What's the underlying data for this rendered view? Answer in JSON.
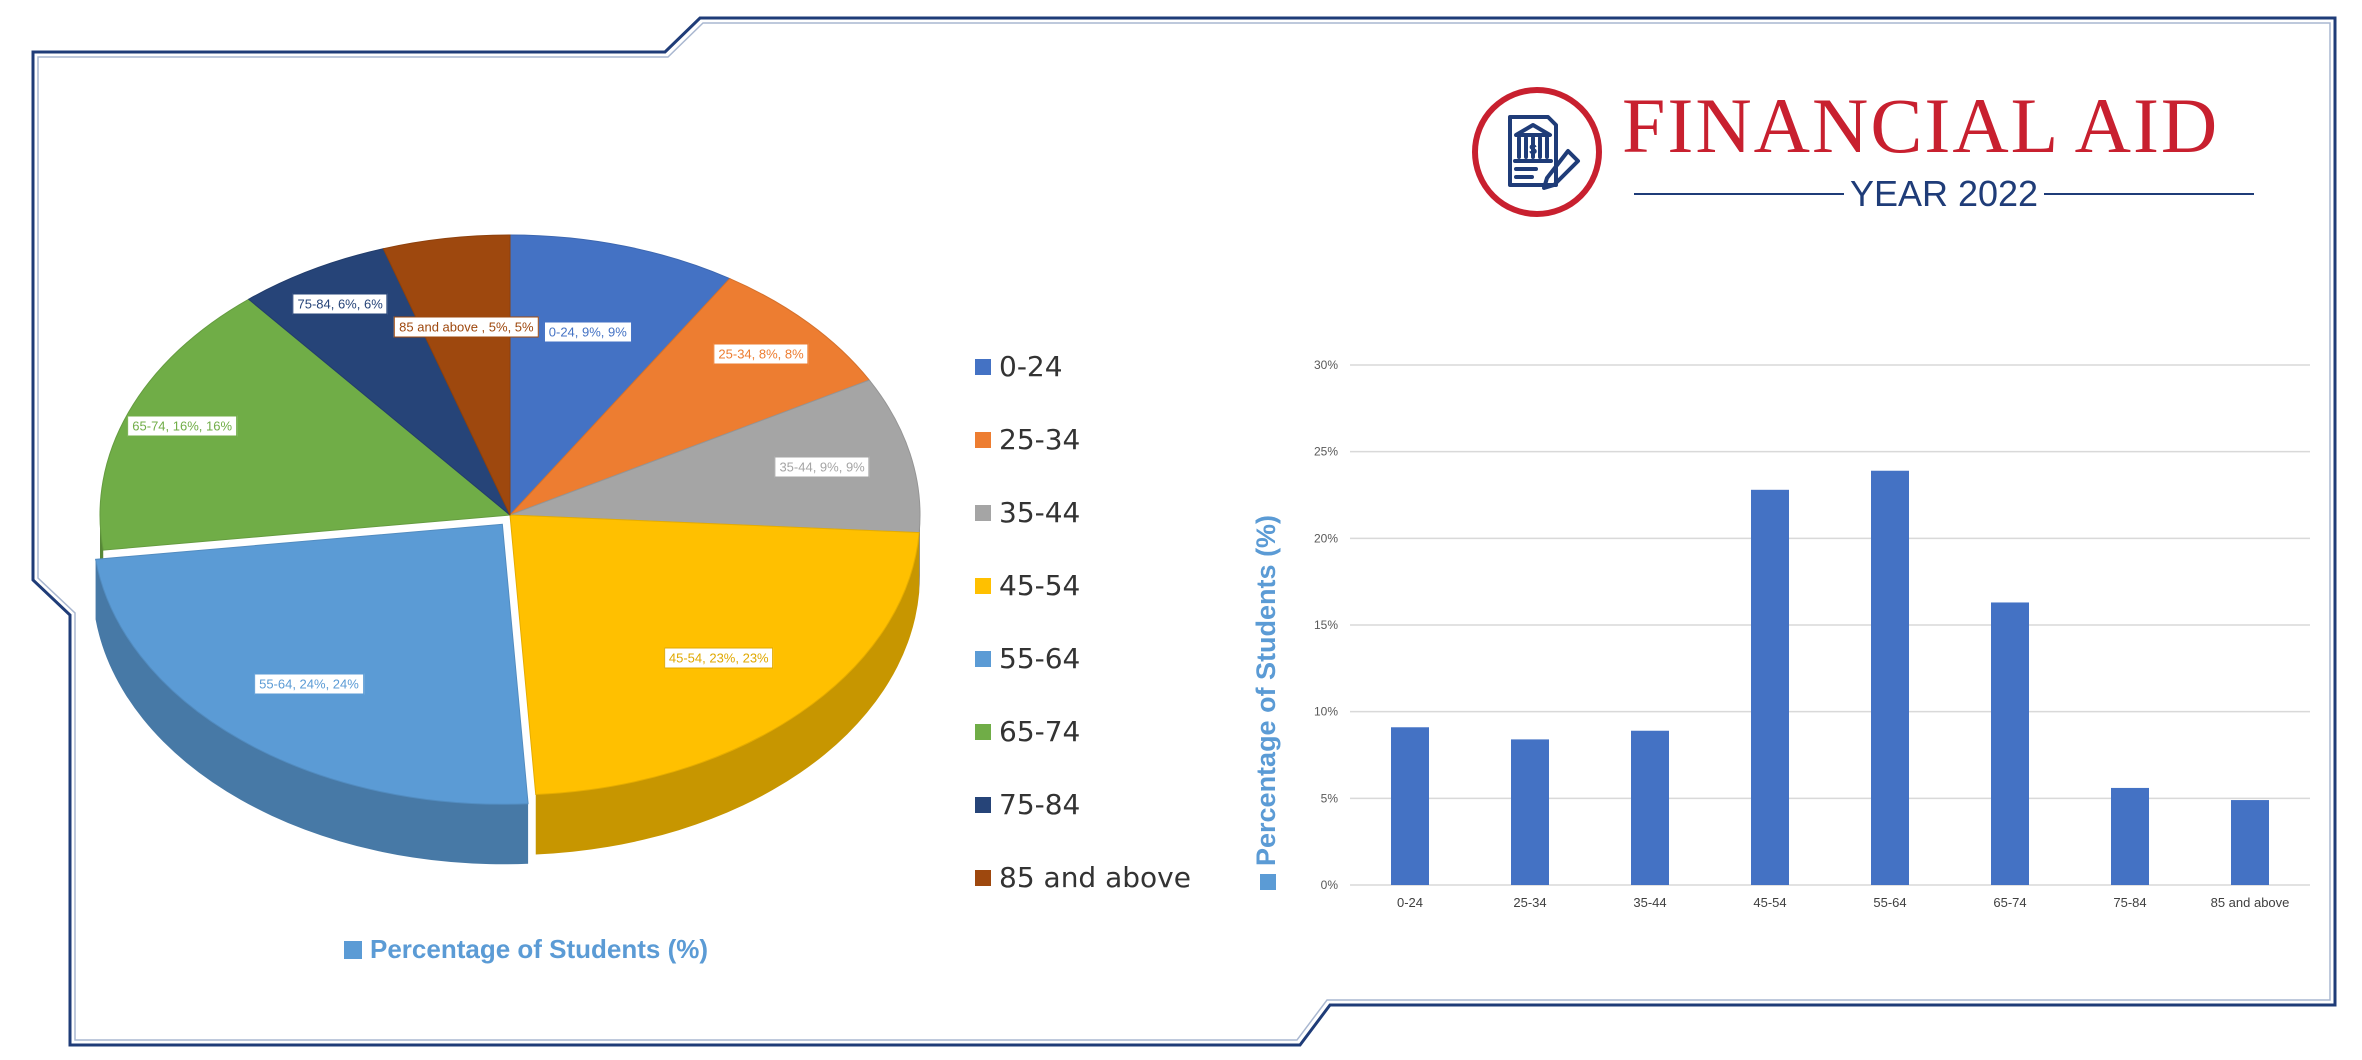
{
  "brand": {
    "title": "FINANCIAL AID",
    "year": "YEAR 2022",
    "logo_icon": "bank-document-pen-icon"
  },
  "colors": {
    "frame": "#1f3c78",
    "brand_red": "#c8202f",
    "bar": "#4472c4",
    "series_text": "#5b9bd5"
  },
  "chart_data": [
    {
      "type": "pie",
      "style": "3d-exploded",
      "categories": [
        "0-24",
        "25-34",
        "35-44",
        "45-54",
        "55-64",
        "65-74",
        "75-84",
        "85 and above"
      ],
      "values": [
        9,
        8,
        9,
        23,
        24,
        16,
        6,
        5
      ],
      "colors": [
        "#4472c4",
        "#ed7d31",
        "#a5a5a5",
        "#ffc000",
        "#5b9bd5",
        "#70ad47",
        "#264478",
        "#9e480e"
      ],
      "data_labels": [
        "0-24, 9%, 9%",
        "25-34, 8%, 8%",
        "35-44, 9%, 9%",
        "45-54, 23%, 23%",
        "55-64, 24%, 24%",
        "65-74, 16%, 16%",
        "75-84, 6%, 6%",
        "85 and above , 5%, 5%"
      ],
      "legend_position": "right",
      "series_name": "Percentage of Students (%)"
    },
    {
      "type": "bar",
      "categories": [
        "0-24",
        "25-34",
        "35-44",
        "45-54",
        "55-64",
        "65-74",
        "75-84",
        "85 and above"
      ],
      "values": [
        9.1,
        8.4,
        8.9,
        22.8,
        23.9,
        16.3,
        5.6,
        4.9
      ],
      "ylabel": "Percentage of Students (%)",
      "ylim": [
        0,
        30
      ],
      "yticks": [
        "0%",
        "5%",
        "10%",
        "15%",
        "20%",
        "25%",
        "30%"
      ],
      "grid": true,
      "color": "#4472c4"
    }
  ]
}
